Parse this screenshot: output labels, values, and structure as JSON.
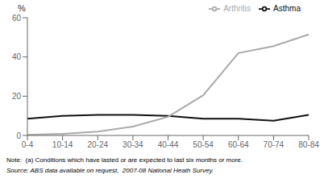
{
  "chart_data": {
    "type": "line",
    "y_label": "%",
    "categories": [
      "0-4",
      "10-14",
      "20-24",
      "30-34",
      "40-44",
      "50-54",
      "60-64",
      "70-74",
      "80-84"
    ],
    "series": [
      {
        "name": "Asthma",
        "color": "#111111",
        "values": [
          8.5,
          10.0,
          10.5,
          10.5,
          10.0,
          8.5,
          8.5,
          7.5,
          10.5
        ]
      },
      {
        "name": "Arthritis",
        "color": "#aaaaaa",
        "values": [
          0.3,
          0.8,
          2.0,
          4.5,
          9.5,
          20.5,
          42.0,
          45.5,
          51.5
        ]
      }
    ],
    "ylim": [
      0,
      60
    ],
    "yticks": [
      0,
      20,
      40,
      60
    ],
    "legend": "top-right",
    "grid": false,
    "annotations": [
      "Note:  (a) Conditions which have lasted or are expected to last six months or more.",
      "Source: ABS data available on request,  2007-08 National Heath Survey."
    ]
  }
}
